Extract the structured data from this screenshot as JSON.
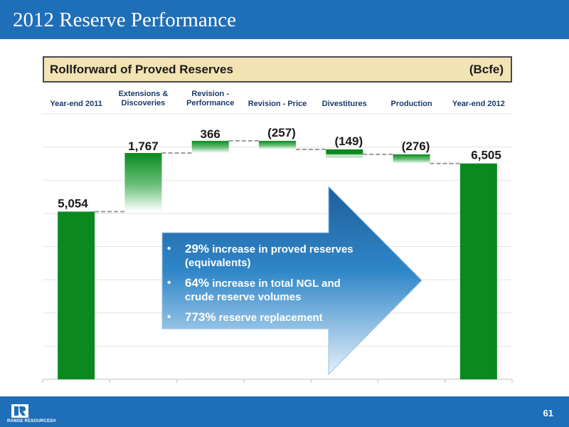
{
  "slide": {
    "title": "2012 Reserve Performance",
    "subtitle": "Rollforward of Proved Reserves",
    "unit": "(Bcfe)",
    "page_number": "61",
    "brand": "RANGE RESOURCES®"
  },
  "callout": {
    "bullets": [
      {
        "highlight": "29%",
        "text": " increase in proved reserves (equivalents)"
      },
      {
        "highlight": "64%",
        "text": " increase in total NGL and crude reserve volumes"
      },
      {
        "highlight": "773%",
        "text": " reserve replacement"
      }
    ]
  },
  "colors": {
    "brand_blue": "#1f6fb8",
    "bar_green": "#0a8a1e",
    "label_navy": "#1a3a6b",
    "subtitle_bg": "#f2e3b3"
  },
  "chart_data": {
    "type": "bar",
    "subtype": "waterfall",
    "categories": [
      "Year-end 2011",
      "Extensions & Discoveries",
      "Revision - Performance",
      "Revision - Price",
      "Divestitures",
      "Production",
      "Year-end 2012"
    ],
    "category_lines": [
      [
        "Year-end 2011"
      ],
      [
        "Extensions &",
        "Discoveries"
      ],
      [
        "Revision -",
        "Performance"
      ],
      [
        "Revision - Price"
      ],
      [
        "Divestitures"
      ],
      [
        "Production"
      ],
      [
        "Year-end 2012"
      ]
    ],
    "values": [
      5054,
      1767,
      366,
      -257,
      -149,
      -276,
      6505
    ],
    "value_labels": [
      "5,054",
      "1,767",
      "366",
      "(257)",
      "(149)",
      "(276)",
      "6,505"
    ],
    "kinds": [
      "total",
      "delta",
      "delta",
      "delta",
      "delta",
      "delta",
      "total"
    ],
    "ylim": [
      0,
      8000
    ],
    "grid": true,
    "gridline_step": 1000
  }
}
